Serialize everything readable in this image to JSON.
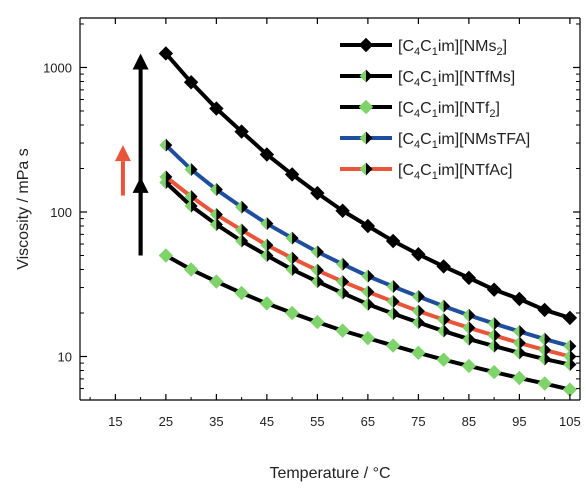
{
  "chart_data": {
    "type": "line",
    "xlabel": "Temperature / °C",
    "ylabel": "Viscosity / mPa s",
    "y_scale": "log",
    "xlim": [
      8,
      107
    ],
    "ylim": [
      5,
      2200
    ],
    "x_ticks": [
      15,
      25,
      35,
      45,
      55,
      65,
      75,
      85,
      95,
      105
    ],
    "y_ticks": [
      10,
      100,
      1000
    ],
    "grid": false,
    "legend_position": "top-right",
    "x": [
      25,
      30,
      35,
      40,
      45,
      50,
      55,
      60,
      65,
      70,
      75,
      80,
      85,
      90,
      95,
      100,
      105
    ],
    "series": [
      {
        "name": "[C4C1im][NMs2]",
        "legend_parts": [
          [
            "[C",
            false
          ],
          [
            "4",
            true
          ],
          [
            "C",
            false
          ],
          [
            "1",
            true
          ],
          [
            "im][NMs",
            false
          ],
          [
            "2",
            true
          ],
          [
            "]",
            false
          ]
        ],
        "line_color": "#000000",
        "marker": "black",
        "values": [
          1250,
          790,
          520,
          360,
          250,
          182,
          135,
          102,
          80,
          63,
          51,
          42,
          35,
          29,
          25,
          21,
          18.5
        ]
      },
      {
        "name": "[C4C1im][NTfMs]",
        "legend_parts": [
          [
            "[C",
            false
          ],
          [
            "4",
            true
          ],
          [
            "C",
            false
          ],
          [
            "1",
            true
          ],
          [
            "im][NTfMs]",
            false
          ]
        ],
        "line_color": "#000000",
        "marker": "half",
        "values": [
          160,
          110,
          82,
          63,
          50,
          40,
          33,
          27.5,
          23,
          19.8,
          17.2,
          15,
          13.2,
          11.8,
          10.6,
          9.6,
          8.8
        ]
      },
      {
        "name": "[C4C1im][NTf2]",
        "legend_parts": [
          [
            "[C",
            false
          ],
          [
            "4",
            true
          ],
          [
            "C",
            false
          ],
          [
            "1",
            true
          ],
          [
            "im][NTf",
            false
          ],
          [
            "2",
            true
          ],
          [
            "]",
            false
          ]
        ],
        "line_color": "#000000",
        "marker": "green",
        "values": [
          50,
          40,
          33,
          27.5,
          23.3,
          20,
          17.3,
          15.1,
          13.4,
          11.9,
          10.6,
          9.5,
          8.6,
          7.8,
          7.1,
          6.5,
          5.9
        ]
      },
      {
        "name": "[C4C1im][NMsTFA]",
        "legend_parts": [
          [
            "[C",
            false
          ],
          [
            "4",
            true
          ],
          [
            "C",
            false
          ],
          [
            "1",
            true
          ],
          [
            "im][NMsTFA]",
            false
          ]
        ],
        "line_color": "#1f4e9c",
        "marker": "half",
        "values": [
          290,
          197,
          143,
          108,
          83,
          66,
          53,
          43.5,
          36,
          30.5,
          26,
          22.3,
          19.3,
          16.9,
          14.9,
          13.2,
          11.8
        ]
      },
      {
        "name": "[C4C1im][NTfAc]",
        "legend_parts": [
          [
            "[C",
            false
          ],
          [
            "4",
            true
          ],
          [
            "C",
            false
          ],
          [
            "1",
            true
          ],
          [
            "im][NTfAc]",
            false
          ]
        ],
        "line_color": "#e8553a",
        "marker": "half",
        "values": [
          175,
          128,
          96,
          75,
          59,
          48,
          39.5,
          33,
          28,
          24,
          20.6,
          18,
          15.8,
          14,
          12.4,
          11.1,
          10
        ]
      }
    ],
    "annotations": [
      {
        "type": "arrow",
        "color": "#000000",
        "x": 20,
        "y_from": 50,
        "y_to": 1250
      },
      {
        "type": "arrow",
        "color": "#000000",
        "x": 20,
        "y_from": 50,
        "y_to": 175
      },
      {
        "type": "arrow",
        "color": "#e8553a",
        "x": 16.5,
        "y_from": 130,
        "y_to": 290
      }
    ],
    "colors": {
      "green_marker": "#7ed36a",
      "axis": "#000000"
    }
  }
}
